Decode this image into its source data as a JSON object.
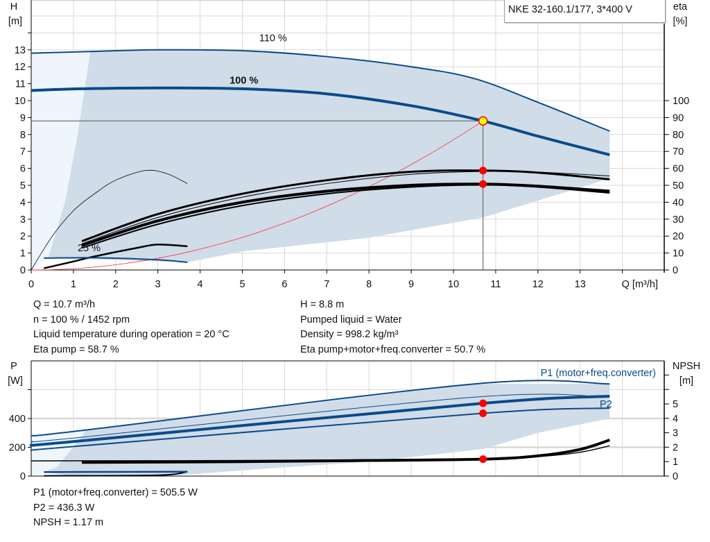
{
  "product_label": "NKE 32-160.1/177, 3*400 V",
  "colors": {
    "curve": "#0b4a8a",
    "area": "#d0dce8",
    "area_light": "#eef5fc",
    "duty": "#ff0000",
    "duty_fill": "#ffff00",
    "system": "#ff3030",
    "eta": "#000000"
  },
  "info_top_left": [
    "Q = 10.7 m³/h",
    "n = 100 % / 1452 rpm",
    "Liquid temperature during operation = 20 °C",
    "Eta pump = 58.7 %"
  ],
  "info_top_right": [
    "H = 8.8 m",
    "Pumped liquid = Water",
    "Density = 998.2 kg/m³",
    "Eta pump+motor+freq.converter = 50.7 %"
  ],
  "info_bottom": [
    "P1 (motor+freq.converter) = 505.5 W",
    "P2 = 436.3 W",
    "NPSH = 1.17 m"
  ],
  "chart_data": [
    {
      "type": "line",
      "xlabel": "Q [m³/h]",
      "ylabel_left": [
        "H",
        "[m]"
      ],
      "ylabel_right": [
        "eta",
        "[%]"
      ],
      "xticks": [
        0,
        1,
        2,
        3,
        4,
        5,
        6,
        7,
        8,
        9,
        10,
        11,
        12,
        13
      ],
      "yticks_left": [
        0,
        1,
        2,
        3,
        4,
        5,
        6,
        7,
        8,
        9,
        10,
        11,
        12,
        13
      ],
      "yticks_right": [
        0,
        10,
        20,
        30,
        40,
        50,
        60,
        70,
        80,
        90,
        100
      ],
      "xlim": [
        0,
        15
      ],
      "ylim_left": [
        0,
        15.9
      ],
      "ylim_right": [
        0,
        159
      ],
      "grid": true,
      "operating_range_light": [
        [
          0,
          12.8
        ],
        [
          1.4,
          12.9
        ],
        [
          1.1,
          8
        ],
        [
          0.8,
          4
        ],
        [
          0.4,
          0.7
        ],
        [
          0,
          0
        ]
      ],
      "operating_range": [
        [
          1.4,
          12.9
        ],
        [
          3,
          13.0
        ],
        [
          5,
          12.95
        ],
        [
          7,
          12.6
        ],
        [
          9,
          12.0
        ],
        [
          10.5,
          11.3
        ],
        [
          12,
          9.9
        ],
        [
          13.7,
          8.2
        ],
        [
          13.7,
          5.4
        ],
        [
          10.7,
          3.1
        ],
        [
          8,
          1.9
        ],
        [
          5,
          1.1
        ],
        [
          3.7,
          0.45
        ],
        [
          0.4,
          0.7
        ],
        [
          0.8,
          4
        ],
        [
          1.1,
          8
        ]
      ],
      "head_curves": [
        {
          "label": "110 %",
          "width": 2,
          "points": [
            [
              0,
              12.8
            ],
            [
              1.4,
              12.9
            ],
            [
              3,
              13.0
            ],
            [
              5,
              12.95
            ],
            [
              7,
              12.6
            ],
            [
              9,
              12.0
            ],
            [
              10.5,
              11.3
            ],
            [
              12,
              9.9
            ],
            [
              13.7,
              8.2
            ]
          ]
        },
        {
          "label": "100 %",
          "width": 4,
          "points": [
            [
              0,
              10.6
            ],
            [
              1.2,
              10.7
            ],
            [
              3,
              10.75
            ],
            [
              5,
              10.7
            ],
            [
              7,
              10.4
            ],
            [
              9,
              9.7
            ],
            [
              10.7,
              8.8
            ],
            [
              12,
              7.9
            ],
            [
              13.7,
              6.8
            ]
          ]
        },
        {
          "label": "25 %",
          "width": 2,
          "points": [
            [
              0.3,
              0.7
            ],
            [
              1.5,
              0.72
            ],
            [
              3,
              0.6
            ],
            [
              3.7,
              0.45
            ]
          ]
        }
      ],
      "eta_curves": [
        {
          "width": 3,
          "points": [
            [
              1.2,
              17
            ],
            [
              3,
              33
            ],
            [
              5,
              45
            ],
            [
              7,
              53
            ],
            [
              9,
              58
            ],
            [
              10.7,
              58.7
            ],
            [
              12,
              57.5
            ],
            [
              13.7,
              53.5
            ]
          ]
        },
        {
          "width": 1,
          "points": [
            [
              1.2,
              15.5
            ],
            [
              3,
              31
            ],
            [
              5,
              43
            ],
            [
              7,
              51
            ],
            [
              9,
              56.5
            ],
            [
              10.7,
              58.2
            ],
            [
              12,
              57.8
            ],
            [
              13.7,
              55.5
            ]
          ]
        },
        {
          "width": 4,
          "points": [
            [
              1.2,
              14.5
            ],
            [
              3,
              29
            ],
            [
              5,
              40
            ],
            [
              7,
              46.5
            ],
            [
              9,
              50
            ],
            [
              10.7,
              50.7
            ],
            [
              12,
              49.5
            ],
            [
              13.7,
              46.5
            ]
          ]
        },
        {
          "width": 2,
          "points": [
            [
              1.2,
              13
            ],
            [
              3,
              27
            ],
            [
              5,
              38
            ],
            [
              7,
              45
            ],
            [
              9,
              49
            ],
            [
              10.7,
              50.2
            ],
            [
              12,
              49
            ],
            [
              13.7,
              45.5
            ]
          ]
        },
        {
          "width": 0.8,
          "points": [
            [
              0,
              0
            ],
            [
              0.5,
              20
            ],
            [
              1,
              35
            ],
            [
              1.5,
              45
            ],
            [
              2,
              53
            ],
            [
              2.7,
              58.7
            ],
            [
              3.2,
              57
            ],
            [
              3.7,
              51
            ]
          ]
        },
        {
          "width": 2.5,
          "points": [
            [
              0.3,
              1
            ],
            [
              1,
              5
            ],
            [
              1.5,
              8
            ],
            [
              2.5,
              13
            ],
            [
              3,
              15
            ],
            [
              3.7,
              14
            ]
          ]
        }
      ],
      "system_curve": {
        "q": 10.7,
        "h": 8.8
      },
      "duty_point": {
        "q": 10.7,
        "h": 8.8
      },
      "eta_points": [
        58.7,
        50.7
      ]
    },
    {
      "type": "line",
      "ylabel_left": [
        "P",
        "[W]"
      ],
      "ylabel_right": [
        "NPSH",
        "[m]"
      ],
      "yticks_left": [
        0,
        200,
        400
      ],
      "yticks_right": [
        0,
        1,
        2,
        3,
        4,
        5
      ],
      "xlim": [
        0,
        15
      ],
      "ylim_left": [
        0,
        800
      ],
      "ylim_right": [
        0,
        8
      ],
      "grid": true,
      "operating_range_light": [
        [
          0,
          280
        ],
        [
          1.3,
          320
        ],
        [
          1,
          200
        ],
        [
          0.6,
          60
        ],
        [
          0.3,
          28
        ],
        [
          0,
          0
        ]
      ],
      "operating_range": [
        [
          1.3,
          320
        ],
        [
          10.5,
          640
        ],
        [
          13.7,
          640
        ],
        [
          13.7,
          400
        ],
        [
          12,
          300
        ],
        [
          10.7,
          188
        ],
        [
          8,
          100
        ],
        [
          5,
          40
        ],
        [
          3.7,
          10
        ],
        [
          1,
          0
        ],
        [
          0.3,
          28
        ],
        [
          0.6,
          60
        ],
        [
          1,
          200
        ]
      ],
      "power_curves": [
        {
          "label": "P1 (motor+freq.converter)",
          "width": 2,
          "points": [
            [
              0,
              280
            ],
            [
              1.3,
              320
            ],
            [
              10.5,
              640
            ],
            [
              13.7,
              640
            ]
          ]
        },
        {
          "width": 1,
          "points": [
            [
              0,
              240
            ],
            [
              1.2,
              270
            ],
            [
              10.5,
              548
            ],
            [
              13.7,
              548
            ]
          ]
        },
        {
          "width": 4,
          "points": [
            [
              0,
              215
            ],
            [
              1.2,
              245
            ],
            [
              10.7,
              505.5
            ],
            [
              13.7,
              555
            ]
          ]
        },
        {
          "label": "P2",
          "width": 2,
          "points": [
            [
              0,
              180
            ],
            [
              1.2,
              210
            ],
            [
              10.7,
              436.3
            ],
            [
              13.7,
              472
            ]
          ]
        },
        {
          "width": 2.5,
          "points": [
            [
              0.3,
              28
            ],
            [
              3.7,
              30
            ]
          ]
        }
      ],
      "npsh_curves": [
        {
          "width": 4,
          "points": [
            [
              1.2,
              0.95
            ],
            [
              5,
              1.0
            ],
            [
              8,
              1.08
            ],
            [
              10.7,
              1.17
            ],
            [
              12,
              1.4
            ],
            [
              13,
              1.85
            ],
            [
              13.7,
              2.5
            ]
          ]
        },
        {
          "width": 1.5,
          "points": [
            [
              0,
              1.05
            ],
            [
              5,
              1.08
            ],
            [
              10.7,
              1.2
            ],
            [
              12,
              1.35
            ],
            [
              13,
              1.65
            ],
            [
              13.7,
              2.1
            ]
          ]
        },
        {
          "width": 2,
          "points": [
            [
              0.3,
              0.02
            ],
            [
              3,
              0.06
            ],
            [
              3.7,
              0.3
            ]
          ]
        }
      ],
      "duty_points_power": [
        505.5,
        436.3
      ],
      "duty_point_npsh": 1.17
    }
  ]
}
